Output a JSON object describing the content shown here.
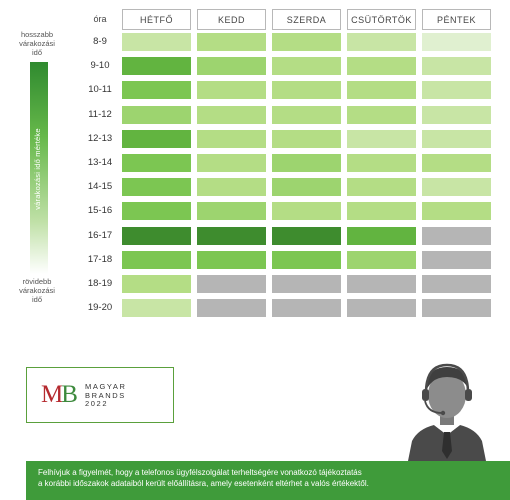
{
  "legend": {
    "top_label": [
      "hosszabb",
      "várakozási",
      "idő"
    ],
    "axis_label": "várakozási idő mértéke",
    "bottom_label": [
      "rövidebb",
      "várakozási",
      "idő"
    ]
  },
  "table": {
    "hour_header": "óra",
    "days": [
      "HÉTFŐ",
      "KEDD",
      "SZERDA",
      "CSÜTÖRTÖK",
      "PÉNTEK"
    ],
    "hours": [
      "8-9",
      "9-10",
      "10-11",
      "11-12",
      "12-13",
      "13-14",
      "14-15",
      "15-16",
      "16-17",
      "17-18",
      "18-19",
      "19-20"
    ],
    "palette": {
      "gray": "#b5b5b5",
      "l1": "#e0f0d0",
      "l2": "#c8e5a5",
      "l3": "#b4dd85",
      "l4": "#9dd46f",
      "l5": "#7cc652",
      "l6": "#62b440",
      "l7": "#3e8c2e"
    },
    "grid": [
      [
        "l2",
        "l3",
        "l3",
        "l2",
        "l1"
      ],
      [
        "l6",
        "l4",
        "l3",
        "l3",
        "l2"
      ],
      [
        "l5",
        "l3",
        "l3",
        "l3",
        "l2"
      ],
      [
        "l4",
        "l3",
        "l3",
        "l3",
        "l2"
      ],
      [
        "l6",
        "l3",
        "l3",
        "l2",
        "l2"
      ],
      [
        "l5",
        "l3",
        "l4",
        "l3",
        "l3"
      ],
      [
        "l5",
        "l3",
        "l4",
        "l3",
        "l2"
      ],
      [
        "l5",
        "l4",
        "l3",
        "l3",
        "l3"
      ],
      [
        "l7",
        "l7",
        "l7",
        "l6",
        "gray"
      ],
      [
        "l5",
        "l5",
        "l5",
        "l4",
        "gray"
      ],
      [
        "l3",
        "gray",
        "gray",
        "gray",
        "gray"
      ],
      [
        "l2",
        "gray",
        "gray",
        "gray",
        "gray"
      ]
    ]
  },
  "logo": {
    "mark_m": "M",
    "mark_b": "B",
    "lines": [
      "MAGYAR",
      "BRANDS",
      "2022"
    ]
  },
  "footer": {
    "lines": [
      "Felhívjuk a figyelmét, hogy a telefonos ügyfélszolgálat terheltségére vonatkozó tájékoztatás",
      "a korábbi időszakok adataiból került előállításra, amely esetenként eltérhet a valós értékektől."
    ]
  }
}
